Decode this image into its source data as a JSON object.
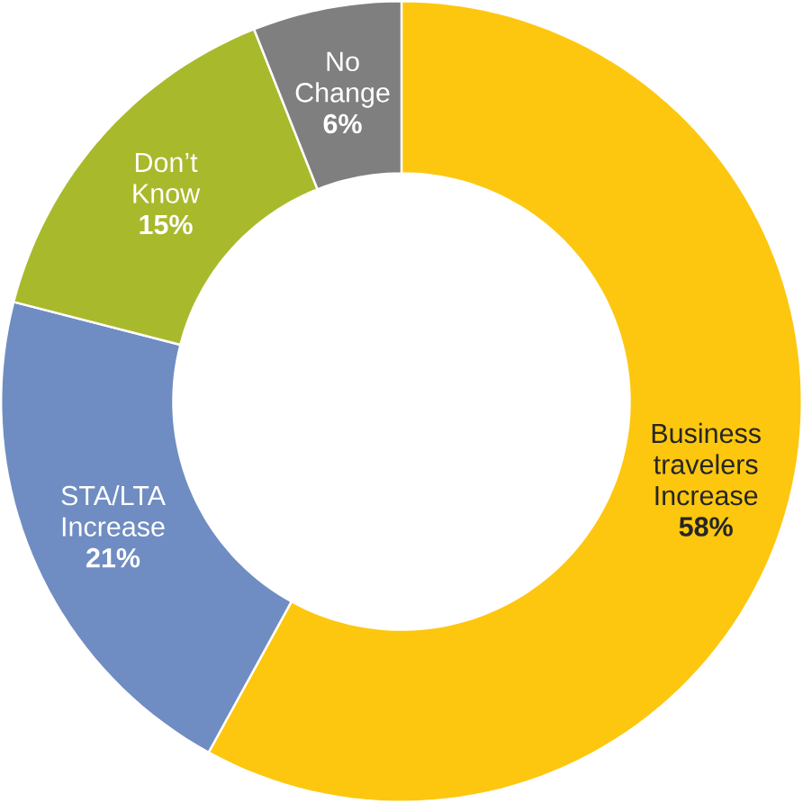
{
  "chart_data": {
    "type": "donut",
    "categories": [
      "Business travelers Increase",
      "STA/LTA Increase",
      "Don’t Know",
      "No Change"
    ],
    "values": [
      58,
      21,
      15,
      6
    ],
    "value_labels": [
      "58%",
      "21%",
      "15%",
      "6%"
    ],
    "colors": [
      "#fdc70f",
      "#6f8dc2",
      "#a9b92c",
      "#7f7f7f"
    ]
  }
}
